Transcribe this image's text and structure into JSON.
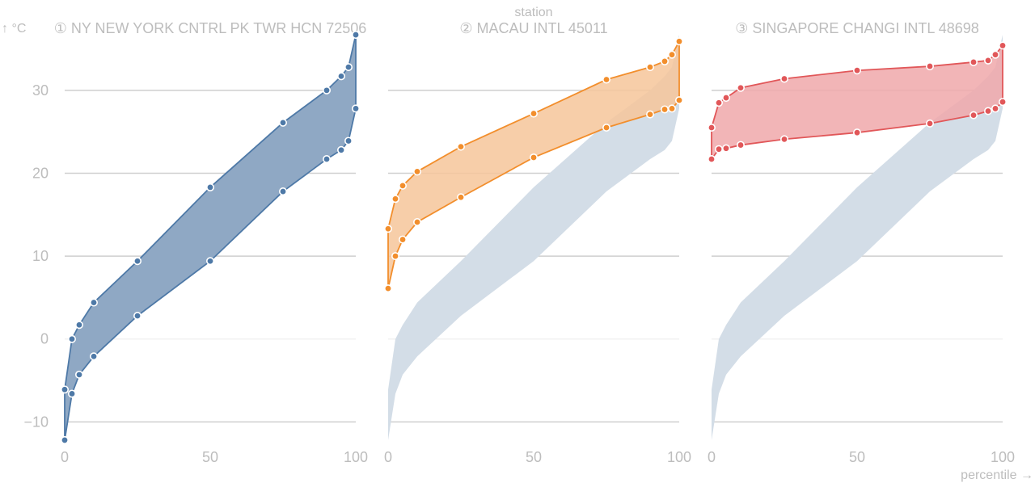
{
  "chart_data": {
    "type": "area",
    "facet_label": "station",
    "ylabel": "↑ °C",
    "xlabel": "percentile →",
    "xlim": [
      0,
      100
    ],
    "ylim": [
      -12.5,
      37
    ],
    "x_ticks": [
      0,
      50,
      100
    ],
    "x_tick_labels": [
      "0",
      "50",
      "100"
    ],
    "y_ticks": [
      -10,
      0,
      10,
      20,
      30
    ],
    "y_tick_labels": [
      "−10",
      "0",
      "10",
      "20",
      "30"
    ],
    "grid": true,
    "percentiles": [
      0,
      2.5,
      5,
      10,
      25,
      50,
      75,
      90,
      95,
      97.5,
      100
    ],
    "stations": [
      {
        "label": "① NY NEW YORK CNTRL PK TWR HCN 72506",
        "color": "#4e79a7",
        "fill": "#8fa8c4",
        "high": [
          -6.1,
          0,
          1.7,
          4.4,
          9.4,
          18.3,
          26.1,
          30.0,
          31.7,
          32.8,
          36.7
        ],
        "low": [
          -12.2,
          -6.6,
          -4.3,
          -2.1,
          2.8,
          9.4,
          17.8,
          21.7,
          22.8,
          23.9,
          27.8
        ]
      },
      {
        "label": "② MACAU INTL 45011",
        "color": "#f28e2c",
        "fill": "#f6c59a",
        "high": [
          13.3,
          16.9,
          18.5,
          20.2,
          23.2,
          27.2,
          31.3,
          32.8,
          33.5,
          34.3,
          35.9
        ],
        "low": [
          6.1,
          10.0,
          12.0,
          14.1,
          17.1,
          21.9,
          25.5,
          27.1,
          27.7,
          27.8,
          28.8
        ]
      },
      {
        "label": "③ SINGAPORE CHANGI INTL 48698",
        "color": "#e15759",
        "fill": "#f0a8aa",
        "high": [
          25.5,
          28.5,
          29.1,
          30.3,
          31.4,
          32.4,
          32.9,
          33.4,
          33.6,
          34.3,
          35.4
        ],
        "low": [
          21.7,
          22.9,
          23.0,
          23.4,
          24.1,
          24.9,
          26.0,
          27.0,
          27.5,
          27.8,
          28.6
        ]
      }
    ],
    "background_band_color": "#d3dde7"
  }
}
